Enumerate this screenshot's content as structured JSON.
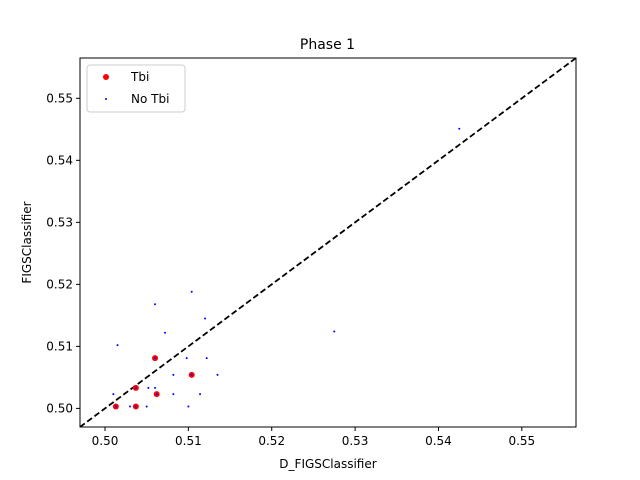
{
  "chart_data": {
    "type": "scatter",
    "title": "Phase 1",
    "xlabel": "D_FIGSClassifier",
    "ylabel": "FIGSClassifier",
    "xlim": [
      0.497,
      0.5565
    ],
    "ylim": [
      0.497,
      0.5565
    ],
    "xticks": [
      0.5,
      0.51,
      0.52,
      0.53,
      0.54,
      0.55
    ],
    "yticks": [
      0.5,
      0.51,
      0.52,
      0.53,
      0.54,
      0.55
    ],
    "xtick_labels": [
      "0.50",
      "0.51",
      "0.52",
      "0.53",
      "0.54",
      "0.55"
    ],
    "ytick_labels": [
      "0.50",
      "0.51",
      "0.52",
      "0.53",
      "0.54",
      "0.55"
    ],
    "reference_line": {
      "style": "dashed",
      "color": "#000000",
      "equation": "y = x"
    },
    "legend_position": "top-left",
    "series": [
      {
        "name": "Tbi",
        "color": "#ff0000",
        "marker_size": "large",
        "points": [
          [
            0.5013,
            0.5003
          ],
          [
            0.5037,
            0.5033
          ],
          [
            0.5037,
            0.5003
          ],
          [
            0.506,
            0.5081
          ],
          [
            0.5062,
            0.5023
          ],
          [
            0.5104,
            0.5054
          ]
        ]
      },
      {
        "name": "No Tbi",
        "color": "#0000ff",
        "marker_size": "small",
        "points": [
          [
            0.5013,
            0.5003
          ],
          [
            0.501,
            0.5023
          ],
          [
            0.5015,
            0.5102
          ],
          [
            0.5037,
            0.5033
          ],
          [
            0.5037,
            0.5003
          ],
          [
            0.503,
            0.5003
          ],
          [
            0.505,
            0.5003
          ],
          [
            0.5052,
            0.5033
          ],
          [
            0.506,
            0.5081
          ],
          [
            0.506,
            0.5033
          ],
          [
            0.5062,
            0.5023
          ],
          [
            0.506,
            0.5168
          ],
          [
            0.5072,
            0.5122
          ],
          [
            0.5082,
            0.5054
          ],
          [
            0.5082,
            0.5023
          ],
          [
            0.5098,
            0.5081
          ],
          [
            0.51,
            0.5003
          ],
          [
            0.5104,
            0.5054
          ],
          [
            0.5104,
            0.5188
          ],
          [
            0.5114,
            0.5023
          ],
          [
            0.512,
            0.5145
          ],
          [
            0.5122,
            0.5081
          ],
          [
            0.5135,
            0.5054
          ],
          [
            0.5275,
            0.5124
          ],
          [
            0.5425,
            0.5451
          ]
        ]
      }
    ]
  }
}
